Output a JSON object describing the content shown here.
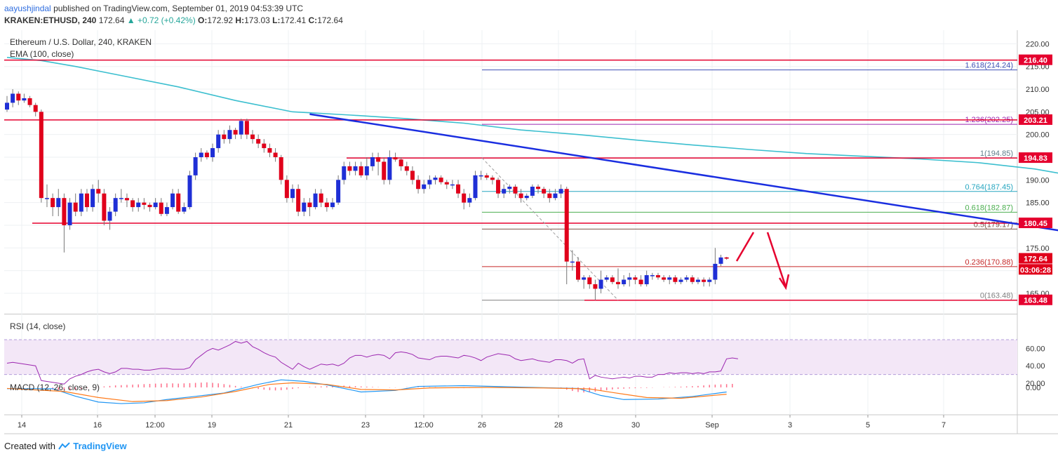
{
  "header": {
    "user": "aayushjindal",
    "published": "published on TradingView.com, September 01, 2019 04:53:39 UTC",
    "symbol": "KRAKEN:ETHUSD, 240",
    "last": "172.64",
    "change": "▲ +0.72 (+0.42%)",
    "o_label": "O:",
    "o": "172.92",
    "h_label": "H:",
    "h": "173.03",
    "l_label": "L:",
    "l": "172.41",
    "c_label": "C:",
    "c": "172.64"
  },
  "legend": {
    "title": "Ethereum / U.S. Dollar, 240, KRAKEN",
    "ema": "EMA (100, close)",
    "rsi": "RSI (14, close)",
    "macd": "MACD (12, 26, close, 9)"
  },
  "footer": {
    "prefix": "Created with",
    "brand": "TradingView"
  },
  "colors": {
    "up": "#1f2fd6",
    "down": "#e0001b",
    "ema": "#3cbfcf",
    "trend": "#1a2ee0",
    "resistance": "#e5002e",
    "rsi": "#9c27b0",
    "rsi_band": "#f3e7f7",
    "macd": "#2196f3",
    "signal": "#ff7a1a",
    "hist": "#ff6f8a"
  },
  "chart_data": {
    "type": "candlestick",
    "title": "Ethereum / U.S. Dollar, 240, KRAKEN",
    "x_ticks": [
      "14",
      "16",
      "12:00",
      "19",
      "21",
      "23",
      "12:00",
      "26",
      "28",
      "30",
      "Sep",
      "3",
      "5",
      "7"
    ],
    "y_ticks": [
      165,
      170,
      175,
      180,
      185,
      190,
      195,
      200,
      205,
      210,
      215,
      220
    ],
    "ylim": [
      160.5,
      223
    ],
    "price_labels": [
      {
        "text": "216.40",
        "value": 216.4
      },
      {
        "text": "203.21",
        "value": 203.21
      },
      {
        "text": "194.83",
        "value": 194.83
      },
      {
        "text": "180.45",
        "value": 180.45
      },
      {
        "text": "172.64",
        "value": 172.64
      },
      {
        "text": "03:06:28",
        "value": 170.2
      },
      {
        "text": "163.48",
        "value": 163.48
      }
    ],
    "horizontal_levels": [
      216.4,
      203.21,
      194.83,
      180.45,
      163.48
    ],
    "fibonacci": [
      {
        "label": "1.618(214.24)",
        "value": 214.24,
        "color": "#3f51b5"
      },
      {
        "label": "1.236(202.25)",
        "value": 202.25,
        "color": "#9c27b0"
      },
      {
        "label": "1(194.85)",
        "value": 194.85,
        "color": "#607d8b"
      },
      {
        "label": "0.764(187.45)",
        "value": 187.45,
        "color": "#26a6c0"
      },
      {
        "label": "0.618(182.87)",
        "value": 182.87,
        "color": "#4caf50"
      },
      {
        "label": "0.5(179.17)",
        "value": 179.17,
        "color": "#795548"
      },
      {
        "label": "0.236(170.88)",
        "value": 170.88,
        "color": "#c62828"
      },
      {
        "label": "0(163.48)",
        "value": 163.48,
        "color": "#808080"
      }
    ],
    "candles": [
      [
        205.5,
        207.0,
        205.0,
        208.5
      ],
      [
        207.0,
        209.0,
        206.0,
        210.0
      ],
      [
        209.0,
        207.5,
        206.5,
        209.5
      ],
      [
        207.5,
        208.0,
        207.0,
        209.0
      ],
      [
        208.0,
        206.5,
        206.0,
        208.5
      ],
      [
        206.5,
        205.0,
        204.0,
        207.0
      ],
      [
        205.0,
        186.0,
        185.0,
        205.5
      ],
      [
        186.0,
        186.0,
        184.0,
        189.0
      ],
      [
        186.0,
        184.0,
        182.0,
        187.0
      ],
      [
        184.0,
        186.0,
        182.0,
        188.0
      ],
      [
        186.0,
        180.0,
        174.0,
        187.0
      ],
      [
        180.0,
        185.0,
        179.0,
        186.0
      ],
      [
        185.0,
        183.0,
        182.0,
        187.0
      ],
      [
        183.0,
        187.0,
        182.0,
        188.0
      ],
      [
        187.0,
        184.0,
        183.0,
        188.0
      ],
      [
        184.0,
        188.0,
        183.0,
        189.0
      ],
      [
        188.0,
        187.0,
        185.0,
        190.0
      ],
      [
        187.0,
        181.0,
        180.0,
        188.0
      ],
      [
        181.0,
        183.0,
        179.0,
        184.0
      ],
      [
        183.0,
        186.0,
        182.0,
        187.0
      ],
      [
        186.0,
        186.0,
        185.0,
        188.0
      ],
      [
        186.0,
        185.5,
        184.0,
        187.0
      ],
      [
        185.5,
        184.0,
        183.0,
        186.0
      ],
      [
        184.0,
        185.0,
        183.0,
        186.0
      ],
      [
        185.0,
        184.5,
        183.5,
        186.0
      ],
      [
        184.5,
        184.0,
        183.0,
        185.0
      ],
      [
        184.0,
        185.0,
        183.5,
        186.0
      ],
      [
        185.0,
        182.5,
        182.0,
        186.0
      ],
      [
        182.5,
        184.0,
        182.0,
        185.0
      ],
      [
        184.0,
        187.0,
        183.5,
        188.0
      ],
      [
        187.0,
        183.0,
        182.5,
        188.0
      ],
      [
        183.0,
        184.0,
        182.5,
        185.0
      ],
      [
        184.0,
        191.0,
        183.5,
        192.0
      ],
      [
        191.0,
        195.0,
        190.0,
        196.0
      ],
      [
        195.0,
        196.0,
        194.0,
        197.0
      ],
      [
        196.0,
        195.0,
        194.5,
        196.5
      ],
      [
        195.0,
        197.0,
        194.0,
        198.0
      ],
      [
        197.0,
        200.0,
        196.0,
        201.0
      ],
      [
        200.0,
        199.0,
        198.0,
        201.0
      ],
      [
        199.0,
        201.0,
        198.0,
        202.0
      ],
      [
        201.0,
        200.0,
        199.0,
        201.5
      ],
      [
        200.0,
        203.0,
        199.0,
        203.5
      ],
      [
        203.0,
        200.0,
        199.0,
        203.5
      ],
      [
        200.0,
        199.0,
        198.0,
        201.0
      ],
      [
        199.0,
        198.0,
        197.0,
        200.0
      ],
      [
        198.0,
        197.0,
        196.0,
        199.0
      ],
      [
        197.0,
        196.0,
        195.0,
        198.0
      ],
      [
        196.0,
        195.0,
        194.0,
        197.0
      ],
      [
        195.0,
        190.0,
        189.0,
        195.5
      ],
      [
        190.0,
        186.0,
        185.0,
        191.0
      ],
      [
        186.0,
        188.0,
        185.0,
        189.0
      ],
      [
        188.0,
        183.0,
        182.0,
        189.0
      ],
      [
        183.0,
        185.0,
        182.0,
        186.0
      ],
      [
        185.0,
        184.0,
        182.0,
        186.0
      ],
      [
        184.0,
        187.0,
        183.5,
        188.0
      ],
      [
        187.0,
        185.0,
        184.0,
        188.0
      ],
      [
        185.0,
        184.0,
        183.0,
        186.0
      ],
      [
        184.0,
        185.0,
        183.5,
        186.0
      ],
      [
        185.0,
        190.0,
        184.5,
        191.0
      ],
      [
        190.0,
        193.0,
        189.0,
        194.0
      ],
      [
        193.0,
        192.0,
        191.0,
        194.0
      ],
      [
        192.0,
        193.0,
        191.0,
        194.0
      ],
      [
        193.0,
        191.0,
        190.5,
        194.0
      ],
      [
        191.0,
        193.0,
        190.0,
        195.0
      ],
      [
        193.0,
        195.0,
        192.0,
        196.0
      ],
      [
        195.0,
        194.0,
        191.0,
        196.0
      ],
      [
        194.0,
        190.0,
        189.0,
        195.0
      ],
      [
        190.0,
        195.0,
        189.0,
        196.5
      ],
      [
        195.0,
        194.5,
        194.0,
        196.0
      ],
      [
        194.5,
        193.0,
        192.0,
        195.0
      ],
      [
        193.0,
        192.0,
        191.0,
        194.0
      ],
      [
        192.0,
        190.0,
        189.0,
        193.0
      ],
      [
        190.0,
        188.0,
        187.0,
        191.0
      ],
      [
        188.0,
        189.0,
        187.0,
        190.0
      ],
      [
        189.0,
        190.0,
        188.0,
        191.0
      ],
      [
        190.0,
        190.5,
        189.0,
        191.0
      ],
      [
        190.5,
        189.5,
        189.0,
        191.0
      ],
      [
        189.5,
        189.0,
        188.0,
        190.0
      ],
      [
        189.0,
        189.0,
        188.0,
        190.0
      ],
      [
        189.0,
        187.0,
        186.0,
        190.0
      ],
      [
        187.0,
        185.0,
        183.5,
        188.0
      ],
      [
        185.0,
        186.0,
        184.0,
        187.0
      ],
      [
        186.0,
        191.0,
        185.5,
        192.0
      ],
      [
        191.0,
        191.0,
        190.0,
        192.0
      ],
      [
        191.0,
        190.5,
        190.0,
        191.5
      ],
      [
        190.5,
        190.0,
        189.0,
        191.0
      ],
      [
        190.0,
        187.0,
        186.0,
        190.5
      ],
      [
        187.0,
        188.0,
        186.0,
        189.0
      ],
      [
        188.0,
        188.5,
        187.0,
        189.0
      ],
      [
        188.5,
        187.0,
        186.0,
        189.0
      ],
      [
        187.0,
        186.0,
        185.0,
        188.0
      ],
      [
        186.0,
        186.5,
        185.5,
        187.0
      ],
      [
        186.5,
        188.5,
        186.0,
        189.0
      ],
      [
        188.5,
        188.0,
        187.0,
        189.0
      ],
      [
        188.0,
        187.0,
        186.0,
        188.5
      ],
      [
        187.0,
        186.0,
        185.0,
        188.0
      ],
      [
        186.0,
        187.0,
        185.5,
        188.0
      ],
      [
        187.0,
        188.0,
        186.0,
        189.0
      ],
      [
        188.0,
        172.0,
        167.0,
        188.5
      ],
      [
        172.0,
        172.0,
        170.0,
        174.5
      ],
      [
        172.0,
        168.0,
        167.5,
        173.0
      ],
      [
        168.0,
        168.5,
        166.0,
        169.0
      ],
      [
        168.5,
        167.0,
        166.0,
        169.0
      ],
      [
        167.0,
        166.0,
        163.5,
        168.0
      ],
      [
        166.0,
        168.0,
        165.0,
        170.0
      ],
      [
        168.0,
        168.5,
        167.5,
        169.0
      ],
      [
        168.5,
        167.5,
        167.0,
        169.0
      ],
      [
        167.5,
        167.0,
        166.0,
        170.5
      ],
      [
        167.0,
        168.0,
        166.5,
        169.0
      ],
      [
        168.0,
        168.5,
        166.5,
        169.5
      ],
      [
        168.5,
        168.0,
        167.0,
        169.0
      ],
      [
        168.0,
        167.0,
        166.5,
        169.0
      ],
      [
        167.0,
        169.0,
        166.5,
        170.0
      ],
      [
        169.0,
        169.0,
        168.0,
        169.5
      ],
      [
        169.0,
        168.5,
        168.0,
        169.5
      ],
      [
        168.5,
        168.0,
        167.5,
        169.0
      ],
      [
        168.0,
        168.5,
        167.0,
        169.0
      ],
      [
        168.5,
        167.5,
        167.0,
        169.0
      ],
      [
        167.5,
        168.0,
        167.0,
        168.5
      ],
      [
        168.0,
        168.5,
        167.5,
        169.0
      ],
      [
        168.5,
        167.5,
        167.0,
        169.0
      ],
      [
        167.5,
        168.0,
        167.0,
        168.5
      ],
      [
        168.0,
        167.5,
        166.5,
        168.5
      ],
      [
        167.5,
        168.0,
        166.5,
        168.5
      ],
      [
        168.0,
        171.5,
        167.0,
        175.0
      ],
      [
        171.5,
        172.9,
        171.0,
        173.5
      ],
      [
        172.92,
        172.64,
        172.41,
        173.03
      ]
    ],
    "ema_100": [
      [
        0,
        217.0
      ],
      [
        6,
        216.3
      ],
      [
        12,
        215.0
      ],
      [
        20,
        213.0
      ],
      [
        30,
        210.5
      ],
      [
        40,
        207.5
      ],
      [
        50,
        205.0
      ],
      [
        60,
        204.3
      ],
      [
        70,
        203.5
      ],
      [
        80,
        202.5
      ],
      [
        90,
        201.0
      ],
      [
        100,
        200.0
      ],
      [
        110,
        198.8
      ],
      [
        120,
        197.7
      ],
      [
        130,
        196.7
      ],
      [
        140,
        195.8
      ],
      [
        150,
        195.2
      ],
      [
        160,
        194.6
      ],
      [
        170,
        193.8
      ],
      [
        180,
        192.4
      ],
      [
        190,
        190.2
      ],
      [
        200,
        188.0
      ],
      [
        210,
        186.2
      ],
      [
        215,
        185.5
      ]
    ],
    "trend_line": [
      [
        53,
        204.5
      ],
      [
        186,
        178.5
      ]
    ],
    "rsi": {
      "levels": [
        30,
        70
      ],
      "y_ticks": [
        20,
        40,
        60
      ],
      "values": [
        43,
        44,
        43,
        42,
        41,
        40,
        23,
        22,
        21,
        20,
        19,
        25,
        28,
        30,
        33,
        35,
        36,
        33,
        31,
        33,
        37,
        37,
        36,
        36,
        35,
        35,
        36,
        37,
        37,
        36,
        36,
        36,
        38,
        47,
        52,
        57,
        60,
        58,
        61,
        64,
        68,
        66,
        68,
        62,
        59,
        55,
        52,
        50,
        44,
        40,
        36,
        43,
        39,
        36,
        39,
        42,
        41,
        42,
        40,
        43,
        49,
        52,
        52,
        50,
        52,
        53,
        52,
        48,
        55,
        56,
        55,
        53,
        49,
        48,
        47,
        50,
        51,
        51,
        50,
        49,
        52,
        51,
        49,
        46,
        50,
        52,
        54,
        53,
        52,
        48,
        46,
        47,
        48,
        46,
        45,
        44,
        47,
        47,
        46,
        43,
        47,
        48,
        25,
        29,
        27,
        26,
        25,
        26,
        27,
        26,
        28,
        28,
        27,
        27,
        30,
        30,
        32,
        31,
        32,
        32,
        31,
        32,
        31,
        33,
        33,
        34,
        48,
        49,
        48
      ]
    },
    "macd": {
      "y_ticks": [
        "0.00"
      ],
      "macd_line": [
        [
          0,
          -0.5
        ],
        [
          8,
          -0.5
        ],
        [
          12,
          -3.5
        ],
        [
          16,
          -5.8
        ],
        [
          20,
          -6.4
        ],
        [
          24,
          -6.1
        ],
        [
          28,
          -4.8
        ],
        [
          32,
          -3.8
        ],
        [
          38,
          -2.2
        ],
        [
          44,
          1.2
        ],
        [
          48,
          3.0
        ],
        [
          52,
          2.4
        ],
        [
          56,
          1.0
        ],
        [
          62,
          -1.8
        ],
        [
          68,
          -1.2
        ],
        [
          72,
          0.4
        ],
        [
          80,
          0.7
        ],
        [
          90,
          0.1
        ],
        [
          100,
          -0.4
        ],
        [
          104,
          -3.2
        ],
        [
          108,
          -4.8
        ],
        [
          114,
          -4.6
        ],
        [
          120,
          -3.6
        ],
        [
          126,
          -1.8
        ]
      ],
      "signal_line": [
        [
          0,
          -0.4
        ],
        [
          10,
          -1.6
        ],
        [
          16,
          -4.0
        ],
        [
          22,
          -5.6
        ],
        [
          28,
          -5.2
        ],
        [
          34,
          -3.8
        ],
        [
          40,
          -1.6
        ],
        [
          46,
          1.2
        ],
        [
          50,
          1.8
        ],
        [
          56,
          1.2
        ],
        [
          62,
          -0.8
        ],
        [
          68,
          -1.0
        ],
        [
          74,
          -0.2
        ],
        [
          84,
          0.0
        ],
        [
          94,
          -0.2
        ],
        [
          102,
          -0.6
        ],
        [
          106,
          -2.0
        ],
        [
          112,
          -4.0
        ],
        [
          118,
          -4.3
        ],
        [
          126,
          -2.7
        ]
      ],
      "histogram": [
        0,
        0,
        0,
        0,
        0,
        0,
        -0.2,
        -0.5,
        -0.8,
        -1.0,
        -1.1,
        -1.0,
        -0.9,
        -0.6,
        -0.3,
        0,
        0.2,
        0.4,
        0.6,
        0.8,
        0.9,
        1.0,
        1.1,
        1.2,
        1.3,
        1.4,
        1.5,
        1.5,
        1.6,
        1.6,
        1.5,
        1.6,
        1.7,
        1.8,
        1.9,
        2.0,
        1.8,
        1.6,
        1.3,
        1.0,
        0.6,
        0.3,
        0,
        -0.3,
        -0.6,
        -0.9,
        -1.1,
        -1.2,
        -1.1,
        -0.9,
        -0.6,
        -0.3,
        0,
        0.2,
        0.3,
        0.4,
        0.5,
        0.6,
        0.7,
        0.7,
        0.6,
        0.5,
        0.4,
        0.3,
        0.2,
        0.1,
        0,
        -0.1,
        -0.1,
        0,
        0.1,
        0.1,
        0.2,
        0.2,
        0.1,
        0.1,
        0,
        -0.1,
        -0.2,
        -0.3,
        -0.3,
        -0.2,
        -0.1,
        0,
        0.1,
        0.1,
        0,
        -0.1,
        -0.1,
        0,
        0.1,
        0.1,
        0,
        -0.1,
        -0.1,
        0,
        0,
        -0.4,
        -0.9,
        -1.4,
        -1.8,
        -2.0,
        -1.9,
        -1.7,
        -1.4,
        -1.1,
        -0.8,
        -0.6,
        -0.5,
        -0.4,
        -0.3,
        -0.2,
        -0.2,
        -0.1,
        0,
        0.1,
        0.1,
        0.2,
        0.3,
        0.4,
        0.5,
        0.6,
        0.8,
        1.0,
        1.1,
        1.2,
        1.3,
        1.4
      ]
    }
  }
}
